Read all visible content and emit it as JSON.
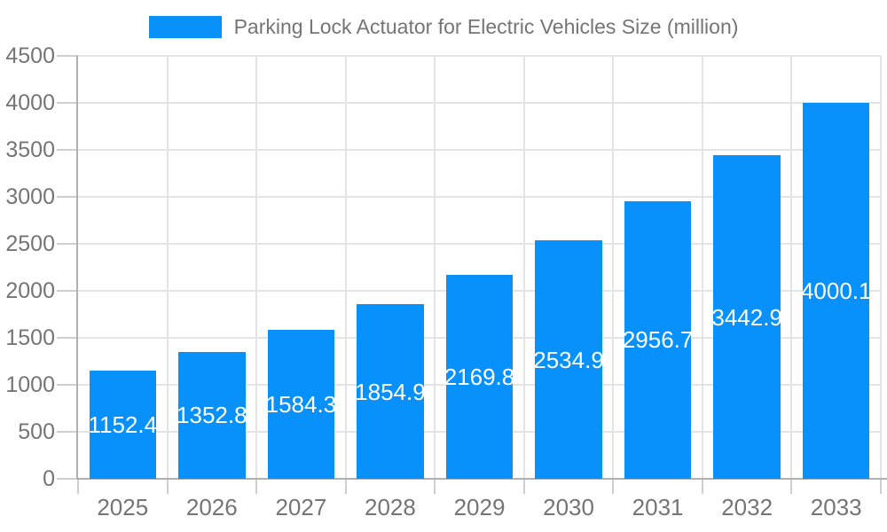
{
  "chart_data": {
    "type": "bar",
    "title": "Parking Lock Actuator for Electric Vehicles Size (million)",
    "legend_entries": [
      "Parking Lock Actuator for Electric Vehicles Size (million)"
    ],
    "categories": [
      "2025",
      "2026",
      "2027",
      "2028",
      "2029",
      "2030",
      "2031",
      "2032",
      "2033"
    ],
    "series": [
      {
        "name": "Parking Lock Actuator for Electric Vehicles Size (million)",
        "values": [
          1152.4,
          1352.8,
          1584.3,
          1854.9,
          2169.8,
          2534.9,
          2956.7,
          3442.9,
          4000.1
        ]
      }
    ],
    "data_labels": [
      "1152.4",
      "1352.8",
      "1584.3",
      "1854.9",
      "2169.8",
      "2534.9",
      "2956.7",
      "3442.9",
      "4000.1"
    ],
    "xlabel": "",
    "ylabel": "",
    "ylim": [
      0,
      4500
    ],
    "yticks": [
      0,
      500,
      1000,
      1500,
      2000,
      2500,
      3000,
      3500,
      4000,
      4500
    ],
    "grid": "both",
    "legend_position": "top-center",
    "data_label_position": "inside-center",
    "colors": {
      "bar": "#0991fb",
      "data_label_text": "#ffffff",
      "axis_text": "#757575",
      "gridline": "#e4e4e4",
      "tick": "#cfcfcf",
      "axis_line": "#b0b0b0",
      "background": "#ffffff"
    }
  }
}
